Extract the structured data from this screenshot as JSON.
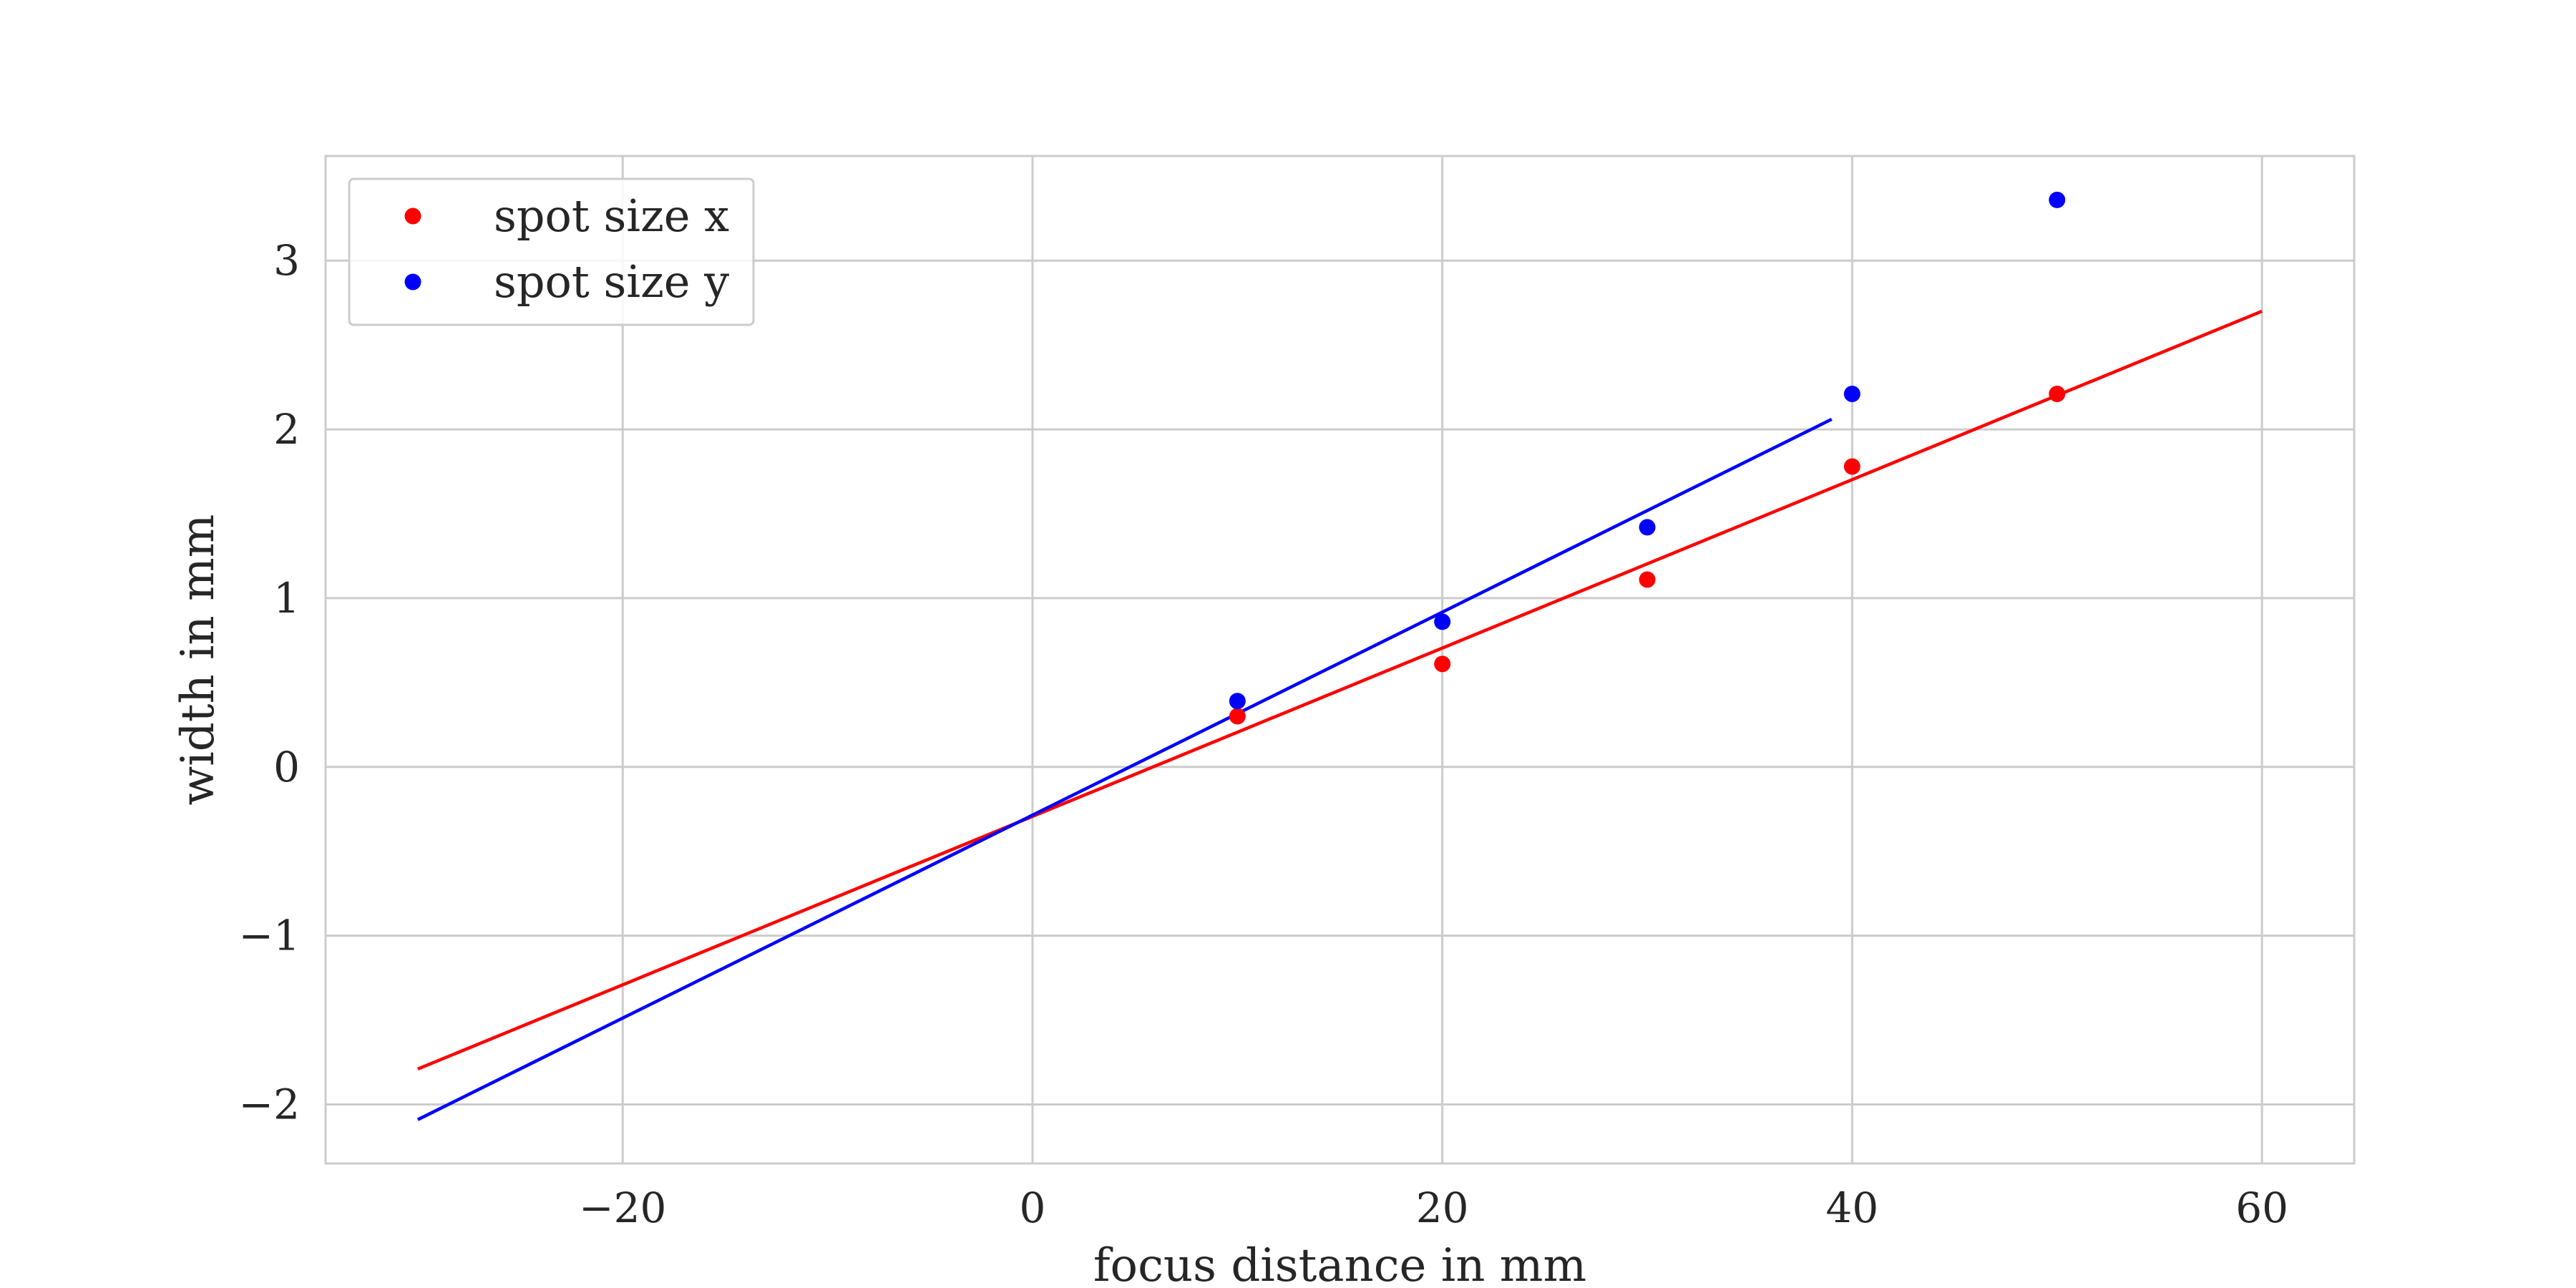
{
  "chart_data": {
    "type": "scatter",
    "title": "",
    "xlabel": "focus distance in mm",
    "ylabel": "width in mm",
    "xlim": [
      -34.5,
      64.5
    ],
    "ylim": [
      -2.35,
      3.62
    ],
    "x_ticks": [
      -20,
      0,
      20,
      40,
      60
    ],
    "y_ticks": [
      -2,
      -1,
      0,
      1,
      2,
      3
    ],
    "x_tick_labels": [
      "−20",
      "0",
      "20",
      "40",
      "60"
    ],
    "y_tick_labels": [
      "−2",
      "−1",
      "0",
      "1",
      "2",
      "3"
    ],
    "grid": true,
    "legend_position": "top-left",
    "series": [
      {
        "name": "spot size x",
        "color": "#ff0000",
        "points": [
          [
            10,
            0.3
          ],
          [
            20,
            0.61
          ],
          [
            30,
            1.11
          ],
          [
            40,
            1.78
          ],
          [
            50,
            2.21
          ]
        ],
        "fit_line": [
          [
            -30,
            -1.79
          ],
          [
            60,
            2.7
          ]
        ]
      },
      {
        "name": "spot size y",
        "color": "#0000ff",
        "points": [
          [
            10,
            0.39
          ],
          [
            20,
            0.86
          ],
          [
            30,
            1.42
          ],
          [
            40,
            2.21
          ],
          [
            50,
            3.36
          ]
        ],
        "fit_line": [
          [
            -30,
            -2.09
          ],
          [
            39,
            2.06
          ]
        ]
      }
    ]
  }
}
